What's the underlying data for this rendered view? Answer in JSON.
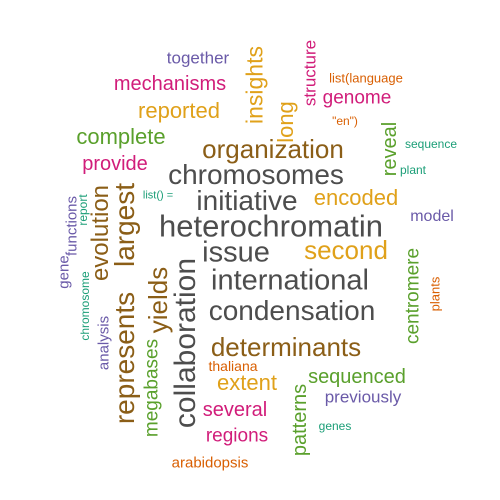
{
  "colors": {
    "gray": "#4d4d4d",
    "brown": "#8b5e17",
    "orange": "#e0a11a",
    "green": "#5aa02c",
    "teal": "#1b9e77",
    "magenta": "#d11d7a",
    "purple": "#6a5aa8",
    "rust": "#d95f02"
  },
  "words": [
    {
      "key": "heterochromatin",
      "text": "heterochromatin",
      "color": "gray"
    },
    {
      "key": "international",
      "text": "international",
      "color": "gray"
    },
    {
      "key": "condensation",
      "text": "condensation",
      "color": "gray"
    },
    {
      "key": "chromosomes",
      "text": "chromosomes",
      "color": "gray"
    },
    {
      "key": "initiative",
      "text": "initiative",
      "color": "gray"
    },
    {
      "key": "issue",
      "text": "issue",
      "color": "gray"
    },
    {
      "key": "collaboration",
      "text": "collaboration",
      "color": "gray"
    },
    {
      "key": "organization",
      "text": "organization",
      "color": "brown"
    },
    {
      "key": "determinants",
      "text": "determinants",
      "color": "brown"
    },
    {
      "key": "largest",
      "text": "largest",
      "color": "brown"
    },
    {
      "key": "represents",
      "text": "represents",
      "color": "brown"
    },
    {
      "key": "evolution",
      "text": "evolution",
      "color": "brown"
    },
    {
      "key": "yields",
      "text": "yields",
      "color": "brown"
    },
    {
      "key": "second",
      "text": "second",
      "color": "orange"
    },
    {
      "key": "encoded",
      "text": "encoded",
      "color": "orange"
    },
    {
      "key": "reported",
      "text": "reported",
      "color": "orange"
    },
    {
      "key": "insights",
      "text": "insights",
      "color": "orange"
    },
    {
      "key": "long",
      "text": "long",
      "color": "orange"
    },
    {
      "key": "extent",
      "text": "extent",
      "color": "orange"
    },
    {
      "key": "complete",
      "text": "complete",
      "color": "green"
    },
    {
      "key": "sequenced",
      "text": "sequenced",
      "color": "green"
    },
    {
      "key": "reveal",
      "text": "reveal",
      "color": "green"
    },
    {
      "key": "centromere",
      "text": "centromere",
      "color": "green"
    },
    {
      "key": "megabases",
      "text": "megabases",
      "color": "green"
    },
    {
      "key": "patterns",
      "text": "patterns",
      "color": "green"
    },
    {
      "key": "genes",
      "text": "genes",
      "color": "teal"
    },
    {
      "key": "plant",
      "text": "plant",
      "color": "teal"
    },
    {
      "key": "sequence",
      "text": "sequence",
      "color": "teal"
    },
    {
      "key": "report",
      "text": "report",
      "color": "teal"
    },
    {
      "key": "chromosome",
      "text": "chromosome",
      "color": "teal"
    },
    {
      "key": "list_empty",
      "text": "list() =",
      "color": "teal"
    },
    {
      "key": "mechanisms",
      "text": "mechanisms",
      "color": "magenta"
    },
    {
      "key": "provide",
      "text": "provide",
      "color": "magenta"
    },
    {
      "key": "genome",
      "text": "genome",
      "color": "magenta"
    },
    {
      "key": "structure",
      "text": "structure",
      "color": "magenta"
    },
    {
      "key": "several",
      "text": "several",
      "color": "magenta"
    },
    {
      "key": "regions",
      "text": "regions",
      "color": "magenta"
    },
    {
      "key": "together",
      "text": "together",
      "color": "purple"
    },
    {
      "key": "model",
      "text": "model",
      "color": "purple"
    },
    {
      "key": "previously",
      "text": "previously",
      "color": "purple"
    },
    {
      "key": "gene",
      "text": "gene",
      "color": "purple"
    },
    {
      "key": "functions",
      "text": "functions",
      "color": "purple"
    },
    {
      "key": "analysis",
      "text": "analysis",
      "color": "purple"
    },
    {
      "key": "list_language",
      "text": "list(language",
      "color": "rust"
    },
    {
      "key": "en_quoted",
      "text": "\"en\")",
      "color": "rust"
    },
    {
      "key": "plants",
      "text": "plants",
      "color": "rust"
    },
    {
      "key": "thaliana",
      "text": "thaliana",
      "color": "rust"
    },
    {
      "key": "arabidopsis",
      "text": "arabidopsis",
      "color": "rust"
    }
  ]
}
